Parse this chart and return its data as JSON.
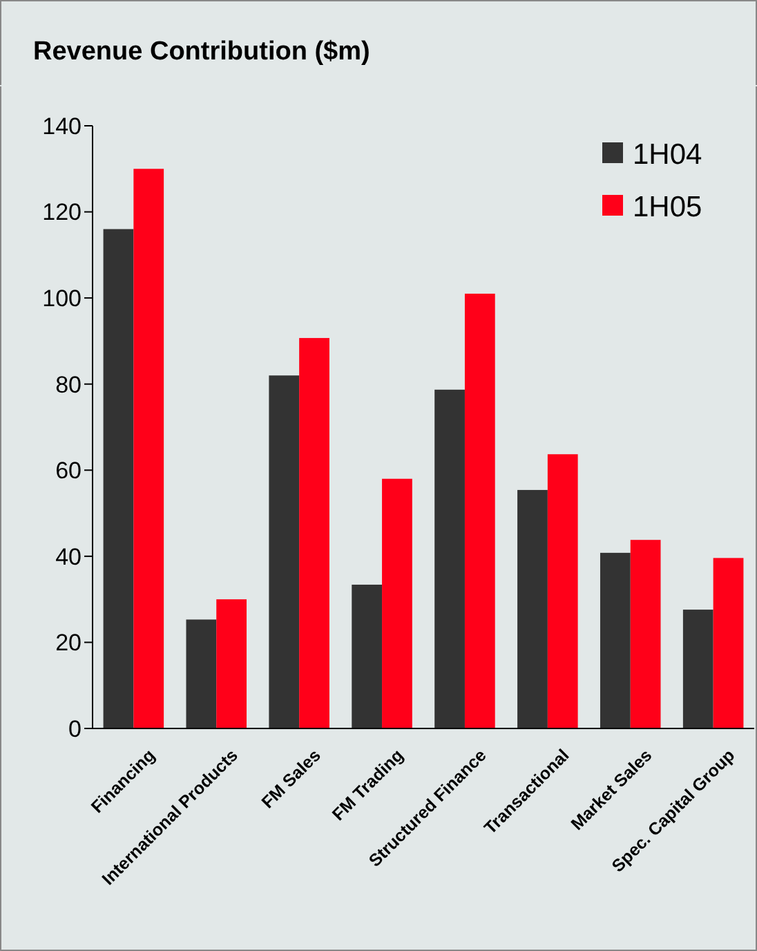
{
  "chart_data": {
    "type": "bar",
    "title": "Revenue Contribution ($m)",
    "categories": [
      "Financing",
      "International Products",
      "FM Sales",
      "FM Trading",
      "Structured Finance",
      "Transactional",
      "Market Sales",
      "Spec. Capital Group"
    ],
    "series": [
      {
        "name": "1H04",
        "color": "#333333",
        "values": [
          116,
          25.3,
          82,
          33.4,
          78.7,
          55.4,
          40.8,
          27.6
        ]
      },
      {
        "name": "1H05",
        "color": "#ff0019",
        "values": [
          130,
          30,
          90.7,
          58,
          101,
          63.7,
          43.8,
          39.6
        ]
      }
    ],
    "ylim": [
      0,
      140
    ],
    "yticks": [
      0,
      20,
      40,
      60,
      80,
      100,
      120,
      140
    ],
    "grid": false,
    "legend": "top right"
  }
}
